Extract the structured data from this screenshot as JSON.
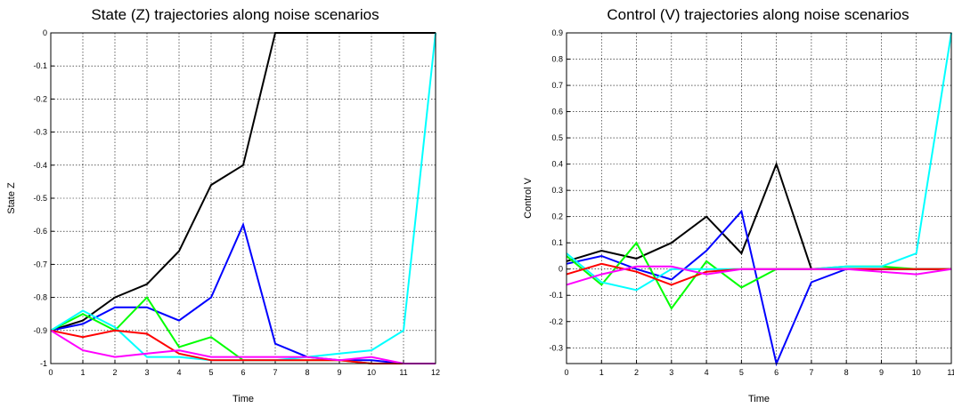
{
  "chart_data": [
    {
      "type": "line",
      "title": "State (Z) trajectories along noise scenarios",
      "xlabel": "Time",
      "ylabel": "State Z",
      "xlim": [
        0,
        12
      ],
      "ylim": [
        -1,
        0
      ],
      "xticks": [
        "0",
        "1",
        "2",
        "3",
        "4",
        "5",
        "6",
        "7",
        "8",
        "9",
        "10",
        "11",
        "12"
      ],
      "yticks": [
        "0",
        "-0.1",
        "-0.2",
        "-0.3",
        "-0.4",
        "-0.5",
        "-0.6",
        "-0.7",
        "-0.8",
        "-0.9",
        "-1"
      ],
      "grid": true,
      "x": [
        0,
        1,
        2,
        3,
        4,
        5,
        6,
        7,
        8,
        9,
        10,
        11,
        12
      ],
      "series": [
        {
          "color": "#000000",
          "values": [
            -0.9,
            -0.87,
            -0.8,
            -0.76,
            -0.66,
            -0.46,
            -0.4,
            0,
            0,
            0,
            0,
            0,
            0
          ]
        },
        {
          "color": "#0000ff",
          "values": [
            -0.9,
            -0.88,
            -0.83,
            -0.83,
            -0.87,
            -0.8,
            -0.58,
            -0.94,
            -0.98,
            -0.99,
            -0.99,
            -1,
            -1
          ]
        },
        {
          "color": "#00ff00",
          "values": [
            -0.9,
            -0.85,
            -0.9,
            -0.8,
            -0.95,
            -0.92,
            -0.99,
            -0.99,
            -0.99,
            -0.99,
            -1,
            -1,
            -1
          ]
        },
        {
          "color": "#00ffff",
          "values": [
            -0.9,
            -0.84,
            -0.89,
            -0.98,
            -0.98,
            -0.99,
            -0.99,
            -0.99,
            -0.98,
            -0.97,
            -0.96,
            -0.9,
            0
          ]
        },
        {
          "color": "#ff0000",
          "values": [
            -0.9,
            -0.92,
            -0.9,
            -0.91,
            -0.97,
            -0.99,
            -0.99,
            -0.99,
            -0.99,
            -0.99,
            -1,
            -1,
            -1
          ]
        },
        {
          "color": "#ff00ff",
          "values": [
            -0.9,
            -0.96,
            -0.98,
            -0.97,
            -0.96,
            -0.98,
            -0.98,
            -0.98,
            -0.98,
            -0.99,
            -0.98,
            -1,
            -1
          ]
        }
      ]
    },
    {
      "type": "line",
      "title": "Control (V) trajectories along noise scenarios",
      "xlabel": "Time",
      "ylabel": "Control V",
      "xlim": [
        0,
        11
      ],
      "ylim": [
        -0.36,
        0.9
      ],
      "xticks": [
        "0",
        "1",
        "2",
        "3",
        "4",
        "5",
        "6",
        "7",
        "8",
        "9",
        "10",
        "11"
      ],
      "yticks": [
        "0.9",
        "0.8",
        "0.7",
        "0.6",
        "0.5",
        "0.4",
        "0.3",
        "0.2",
        "0.1",
        "0",
        "-0.1",
        "-0.2",
        "-0.3"
      ],
      "grid": true,
      "x": [
        0,
        1,
        2,
        3,
        4,
        5,
        6,
        7,
        8,
        9,
        10,
        11
      ],
      "series": [
        {
          "color": "#000000",
          "values": [
            0.03,
            0.07,
            0.04,
            0.1,
            0.2,
            0.06,
            0.4,
            0,
            0,
            0,
            0,
            0
          ]
        },
        {
          "color": "#0000ff",
          "values": [
            0.02,
            0.05,
            0,
            -0.04,
            0.07,
            0.22,
            -0.36,
            -0.05,
            0,
            0,
            0,
            0
          ]
        },
        {
          "color": "#00ff00",
          "values": [
            0.05,
            -0.06,
            0.1,
            -0.15,
            0.03,
            -0.07,
            0,
            0,
            0.01,
            0.01,
            0,
            0
          ]
        },
        {
          "color": "#00ffff",
          "values": [
            0.06,
            -0.05,
            -0.08,
            0,
            0,
            0,
            0,
            0,
            0.01,
            0.01,
            0.06,
            0.9
          ]
        },
        {
          "color": "#ff0000",
          "values": [
            -0.02,
            0.02,
            -0.01,
            -0.06,
            -0.01,
            0,
            0,
            0,
            0,
            0,
            0,
            0
          ]
        },
        {
          "color": "#ff00ff",
          "values": [
            -0.06,
            -0.02,
            0.01,
            0.01,
            -0.02,
            0,
            0,
            0,
            0,
            -0.01,
            -0.02,
            0
          ]
        }
      ]
    }
  ]
}
